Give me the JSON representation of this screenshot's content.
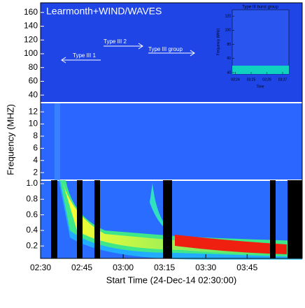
{
  "chart_data": {
    "type": "spectrogram",
    "title": "Learmonth+WIND/WAVES",
    "ylabel": "Frequency (MHZ)",
    "xlabel": "Start Time (24-Dec-14 02:30:00)",
    "xlim": [
      0,
      95
    ],
    "xticks": [
      {
        "value": 0,
        "label": "02:30"
      },
      {
        "value": 15,
        "label": "02:45"
      },
      {
        "value": 30,
        "label": "03:00"
      },
      {
        "value": 45,
        "label": "03:15"
      },
      {
        "value": 60,
        "label": "03:30"
      },
      {
        "value": 75,
        "label": "03:45"
      }
    ],
    "panels": [
      {
        "ylim": [
          30,
          174
        ],
        "yticks": [
          40,
          60,
          80,
          100,
          120,
          140,
          160
        ]
      },
      {
        "ylim": [
          0.75,
          13.4
        ],
        "yticks": [
          2,
          4,
          6,
          8,
          10,
          12
        ]
      },
      {
        "ylim": [
          0.04,
          1.045
        ],
        "yticks": [
          0.2,
          0.4,
          0.6,
          0.8,
          {
            "value": 1,
            "label": "1.0"
          }
        ]
      }
    ],
    "annotations": [
      "Type III 2",
      "Type III group",
      "Type III 1"
    ],
    "inset": {
      "title": "Type III burst group",
      "ylabel": "Frequency (MHz)",
      "xlabel": "Time",
      "ylim": [
        38,
        129
      ],
      "yticks": [
        40,
        60,
        80,
        100,
        120
      ],
      "xlim": [
        53.8,
        57.4
      ],
      "xticks": [
        {
          "value": 54,
          "label": "03:24"
        },
        {
          "value": 55,
          "label": "03:25"
        },
        {
          "value": 56,
          "label": "03:26"
        },
        {
          "value": 57,
          "label": "03:27"
        }
      ]
    }
  }
}
